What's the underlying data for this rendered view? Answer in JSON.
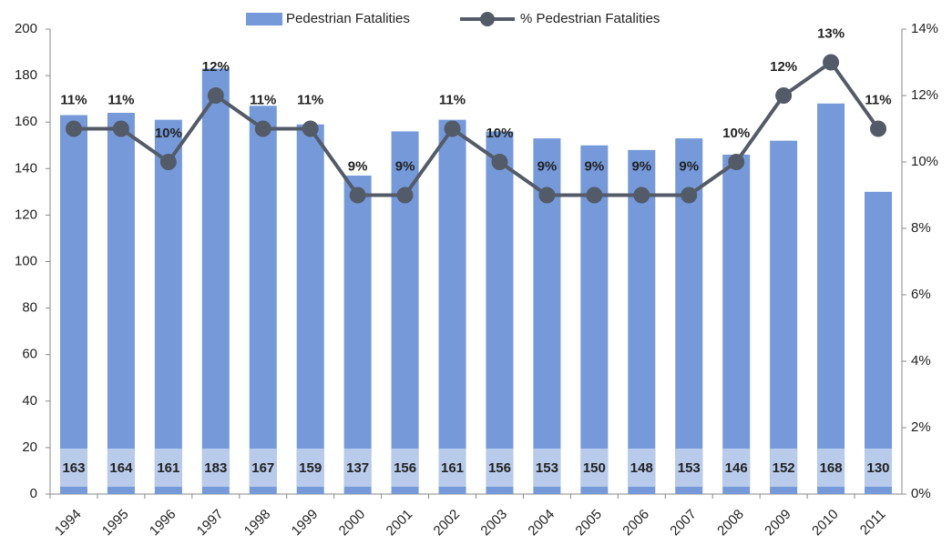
{
  "chart_data": {
    "type": "combo",
    "categories": [
      "1994",
      "1995",
      "1996",
      "1997",
      "1998",
      "1999",
      "2000",
      "2001",
      "2002",
      "2003",
      "2004",
      "2005",
      "2006",
      "2007",
      "2008",
      "2009",
      "2010",
      "2011"
    ],
    "series": [
      {
        "name": "Pedestrian Fatalities",
        "type": "bar",
        "color": "#7599d9",
        "values": [
          163,
          164,
          161,
          183,
          167,
          159,
          137,
          156,
          161,
          156,
          153,
          150,
          148,
          153,
          146,
          152,
          168,
          130
        ]
      },
      {
        "name": "% Pedestrian Fatalities",
        "type": "line",
        "axis": "y2",
        "color": "#545b68",
        "values": [
          11,
          11,
          10,
          12,
          11,
          11,
          9,
          9,
          11,
          10,
          9,
          9,
          9,
          9,
          10,
          12,
          13,
          11
        ],
        "value_labels": [
          "11%",
          "11%",
          "10%",
          "12%",
          "11%",
          "11%",
          "9%",
          "9%",
          "11%",
          "10%",
          "9%",
          "9%",
          "9%",
          "9%",
          "10%",
          "12%",
          "13%",
          "11%"
        ]
      }
    ],
    "ylim": [
      0,
      200
    ],
    "yticks": [
      0,
      20,
      40,
      60,
      80,
      100,
      120,
      140,
      160,
      180,
      200
    ],
    "y2lim": [
      0,
      14
    ],
    "y2ticks": [
      {
        "value": 0,
        "label": "0%"
      },
      {
        "value": 2,
        "label": "2%"
      },
      {
        "value": 4,
        "label": "4%"
      },
      {
        "value": 6,
        "label": "6%"
      },
      {
        "value": 8,
        "label": "8%"
      },
      {
        "value": 10,
        "label": "10%"
      },
      {
        "value": 12,
        "label": "12%"
      },
      {
        "value": 14,
        "label": "14%"
      }
    ],
    "grid": false,
    "legend": "top"
  }
}
